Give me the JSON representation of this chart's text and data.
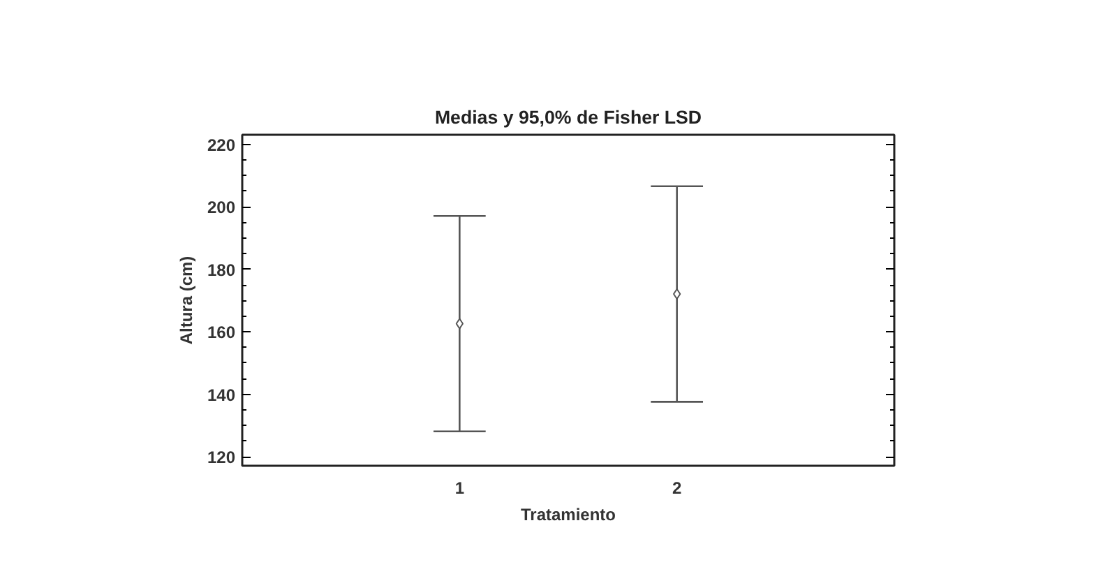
{
  "chart_data": {
    "type": "scatter",
    "title": "Medias y 95,0% de Fisher LSD",
    "xlabel": "Tratamiento",
    "ylabel": "Altura (cm)",
    "categories": [
      "1",
      "2"
    ],
    "series": [
      {
        "color": "#555555",
        "values": [
          162.6,
          172.1
        ],
        "errors": [
          34.5,
          34.5
        ]
      }
    ],
    "ylim": [
      117.1,
      223.1
    ],
    "yticks": [
      120,
      140,
      160,
      180,
      200,
      220
    ],
    "marker": "diamond",
    "grid": false
  }
}
